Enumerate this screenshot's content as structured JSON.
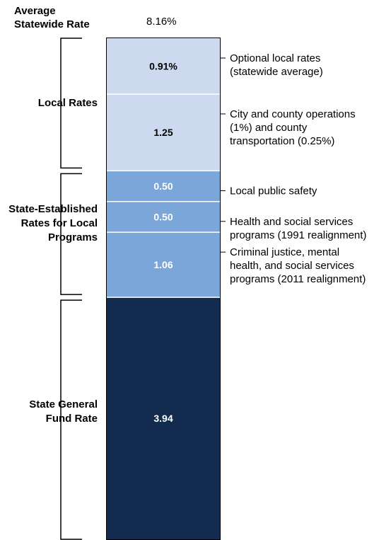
{
  "header": {
    "label_line1": "Average",
    "label_line2": "Statewide Rate",
    "total": "8.16%"
  },
  "colors": {
    "local_rates": "#cdd9ef",
    "state_established": "#7aa6d9",
    "state_general_fund": "#132b4f",
    "segment_divider": "#ffffff",
    "bracket": "#000000"
  },
  "groups": [
    {
      "lines": [
        "Local Rates"
      ]
    },
    {
      "lines": [
        "State-Established",
        "Rates for Local",
        "Programs"
      ]
    },
    {
      "lines": [
        "State General",
        "Fund Rate"
      ]
    }
  ],
  "chart_data": {
    "type": "bar",
    "subtype": "single-stacked-bar",
    "total": 8.16,
    "segments": [
      {
        "value": 0.91,
        "label": "0.91%",
        "group": "Local Rates",
        "desc": [
          "Optional local rates",
          "(statewide average)"
        ]
      },
      {
        "value": 1.25,
        "label": "1.25",
        "group": "Local Rates",
        "desc": [
          "City and county operations",
          "(1%) and county",
          "transportation (0.25%)"
        ]
      },
      {
        "value": 0.5,
        "label": "0.50",
        "group": "State-Established Rates for Local Programs",
        "desc": [
          "Local public safety"
        ]
      },
      {
        "value": 0.5,
        "label": "0.50",
        "group": "State-Established Rates for Local Programs",
        "desc": [
          "Health and social services",
          "programs (1991 realignment)"
        ]
      },
      {
        "value": 1.06,
        "label": "1.06",
        "group": "State-Established Rates for Local Programs",
        "desc": [
          "Criminal justice, mental",
          "health, and social services",
          "programs (2011 realignment)"
        ]
      },
      {
        "value": 3.94,
        "label": "3.94",
        "group": "State General Fund Rate",
        "desc": []
      }
    ]
  }
}
